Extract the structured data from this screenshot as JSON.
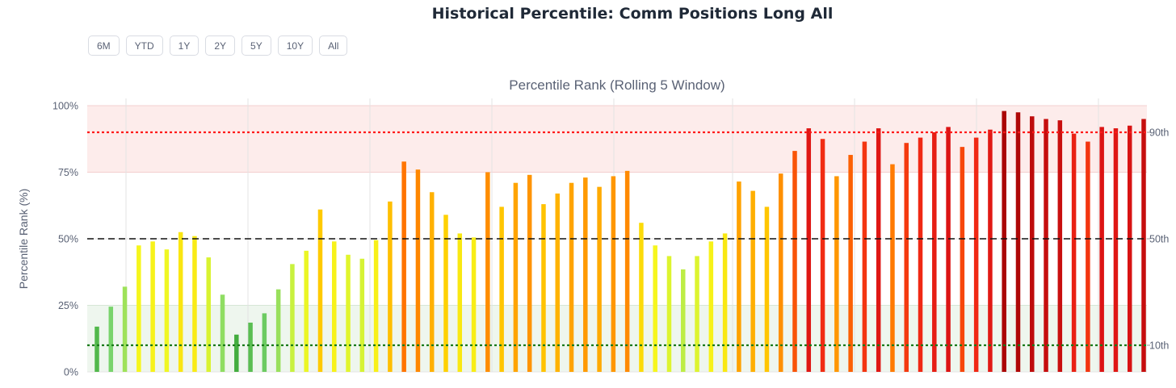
{
  "title": "Historical Percentile: Comm Positions Long All",
  "range_buttons": [
    "6M",
    "YTD",
    "1Y",
    "2Y",
    "5Y",
    "10Y",
    "All"
  ],
  "colors": {
    "high_zone": "#fdeceb",
    "low_zone": "#eef6ee",
    "p90_line": "#ff1a1a",
    "p50_line": "#111111",
    "p10_line": "#1a7a1a"
  },
  "chart_data": {
    "type": "bar",
    "title": "Percentile Rank (Rolling 5 Window)",
    "ylabel": "Percentile Rank (%)",
    "xlabel": "",
    "ylim": [
      0,
      100
    ],
    "yticks": [
      0,
      25,
      50,
      75,
      100
    ],
    "ytick_labels": [
      "0%",
      "25%",
      "50%",
      "75%",
      "100%"
    ],
    "grid": true,
    "zones": [
      {
        "from": 75,
        "to": 100,
        "name": "high"
      },
      {
        "from": 0,
        "to": 25,
        "name": "low"
      }
    ],
    "reference_lines": [
      {
        "value": 90,
        "label": "90th",
        "style": "dotted"
      },
      {
        "value": 50,
        "label": "50th",
        "style": "dashed"
      },
      {
        "value": 10,
        "label": "10th",
        "style": "dotted"
      }
    ],
    "values": [
      17,
      24.5,
      32,
      47.5,
      49,
      46,
      52.5,
      51,
      43,
      29,
      14,
      18.5,
      22,
      31,
      40.5,
      45.5,
      61,
      49,
      44,
      42.5,
      49.5,
      64,
      79,
      76,
      67.5,
      59,
      52,
      50.5,
      75,
      62,
      71,
      74,
      63,
      67,
      71,
      73,
      69.5,
      73.5,
      75.5,
      56,
      47.5,
      43.5,
      38.5,
      43.5,
      49,
      52,
      71.5,
      68,
      62,
      74.5,
      83,
      91.5,
      87.5,
      73.5,
      81.5,
      86.5,
      91.5,
      78,
      86,
      88,
      90,
      92,
      84.5,
      88,
      91,
      98,
      97.5,
      96,
      95,
      94.5,
      89.5,
      86.5,
      92,
      91.5,
      92.5,
      95
    ]
  }
}
